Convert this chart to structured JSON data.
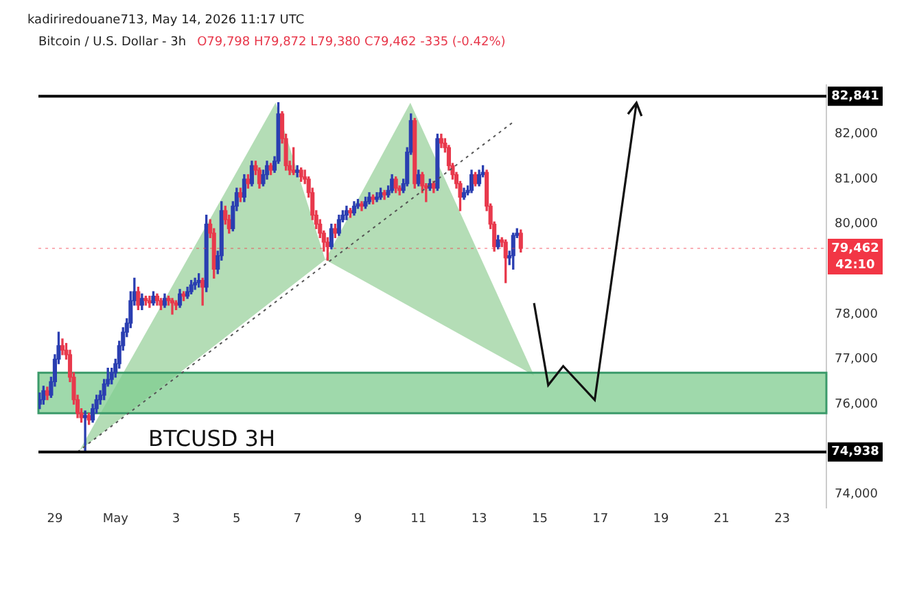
{
  "chart_data": {
    "type": "candlestick",
    "title": "Bitcoin / U.S. Dollar - 3h",
    "subtitle": "kadiriredouane713, May 14, 2026 11:17 UTC",
    "annotations": [
      "O79,798 H79,872 L79,380 C79,462 -335 (-0.42%)",
      "BTCUSD 3H",
      "42:10"
    ],
    "x": [
      "2026-04-28T12:00",
      "2026-04-28T15:00",
      "2026-04-28T18:00",
      "2026-04-28T21:00",
      "2026-04-29T00:00",
      "2026-04-29T03:00",
      "2026-04-29T06:00",
      "2026-04-29T09:00",
      "2026-04-29T12:00",
      "2026-04-29T15:00",
      "2026-04-29T18:00",
      "2026-04-29T21:00",
      "2026-04-30T00:00",
      "2026-04-30T03:00",
      "2026-04-30T06:00",
      "2026-04-30T09:00",
      "2026-04-30T12:00",
      "2026-04-30T15:00",
      "2026-04-30T18:00",
      "2026-04-30T21:00",
      "2026-05-01T00:00",
      "2026-05-01T03:00",
      "2026-05-01T06:00",
      "2026-05-01T09:00",
      "2026-05-01T12:00",
      "2026-05-01T15:00",
      "2026-05-01T18:00",
      "2026-05-01T21:00",
      "2026-05-02T00:00",
      "2026-05-02T03:00",
      "2026-05-02T06:00",
      "2026-05-02T09:00",
      "2026-05-02T12:00",
      "2026-05-02T15:00",
      "2026-05-02T18:00",
      "2026-05-02T21:00",
      "2026-05-03T00:00",
      "2026-05-03T03:00",
      "2026-05-03T06:00",
      "2026-05-03T09:00",
      "2026-05-03T12:00",
      "2026-05-03T15:00",
      "2026-05-03T18:00",
      "2026-05-03T21:00",
      "2026-05-04T00:00",
      "2026-05-04T03:00",
      "2026-05-04T06:00",
      "2026-05-04T09:00",
      "2026-05-04T12:00",
      "2026-05-04T15:00",
      "2026-05-04T18:00",
      "2026-05-04T21:00",
      "2026-05-05T00:00",
      "2026-05-05T03:00",
      "2026-05-05T06:00",
      "2026-05-05T09:00",
      "2026-05-05T12:00",
      "2026-05-05T15:00",
      "2026-05-05T18:00",
      "2026-05-05T21:00",
      "2026-05-06T00:00",
      "2026-05-06T03:00",
      "2026-05-06T06:00",
      "2026-05-06T09:00",
      "2026-05-06T12:00",
      "2026-05-06T15:00",
      "2026-05-06T18:00",
      "2026-05-06T21:00",
      "2026-05-07T00:00",
      "2026-05-07T03:00",
      "2026-05-07T06:00",
      "2026-05-07T09:00",
      "2026-05-07T12:00",
      "2026-05-07T15:00",
      "2026-05-07T18:00",
      "2026-05-07T21:00",
      "2026-05-08T00:00",
      "2026-05-08T03:00",
      "2026-05-08T06:00",
      "2026-05-08T09:00",
      "2026-05-08T12:00",
      "2026-05-08T15:00",
      "2026-05-08T18:00",
      "2026-05-08T21:00",
      "2026-05-09T00:00",
      "2026-05-09T03:00",
      "2026-05-09T06:00",
      "2026-05-09T09:00",
      "2026-05-09T12:00",
      "2026-05-09T15:00",
      "2026-05-09T18:00",
      "2026-05-09T21:00",
      "2026-05-10T00:00",
      "2026-05-10T03:00",
      "2026-05-10T06:00",
      "2026-05-10T09:00",
      "2026-05-10T12:00",
      "2026-05-10T15:00",
      "2026-05-10T18:00",
      "2026-05-10T21:00",
      "2026-05-11T00:00",
      "2026-05-11T03:00",
      "2026-05-11T06:00",
      "2026-05-11T09:00",
      "2026-05-11T12:00",
      "2026-05-11T15:00",
      "2026-05-11T18:00",
      "2026-05-11T21:00",
      "2026-05-12T00:00",
      "2026-05-12T03:00",
      "2026-05-12T06:00",
      "2026-05-12T09:00",
      "2026-05-12T12:00",
      "2026-05-12T15:00",
      "2026-05-12T18:00",
      "2026-05-12T21:00",
      "2026-05-13T00:00",
      "2026-05-13T03:00",
      "2026-05-13T06:00",
      "2026-05-13T09:00",
      "2026-05-13T12:00",
      "2026-05-13T15:00",
      "2026-05-13T18:00",
      "2026-05-13T21:00",
      "2026-05-14T00:00",
      "2026-05-14T03:00",
      "2026-05-14T06:00",
      "2026-05-14T09:00"
    ],
    "ohlc": [
      [
        76000,
        76250,
        75900,
        76100
      ],
      [
        76100,
        76400,
        76000,
        76300
      ],
      [
        76300,
        76380,
        76100,
        76200
      ],
      [
        76200,
        76600,
        76150,
        76500
      ],
      [
        76500,
        77100,
        76400,
        77000
      ],
      [
        77000,
        77600,
        76900,
        77300
      ],
      [
        77300,
        77450,
        77100,
        77200
      ],
      [
        77200,
        77350,
        77000,
        77100
      ],
      [
        77100,
        77200,
        76500,
        76600
      ],
      [
        76600,
        76700,
        76000,
        76100
      ],
      [
        76100,
        76200,
        75700,
        75800
      ],
      [
        75800,
        75900,
        75600,
        75700
      ],
      [
        75700,
        75850,
        74940,
        75750
      ],
      [
        75750,
        75800,
        75550,
        75650
      ],
      [
        75650,
        76000,
        75600,
        75900
      ],
      [
        75900,
        76200,
        75800,
        76100
      ],
      [
        76100,
        76300,
        76000,
        76200
      ],
      [
        76200,
        76550,
        76100,
        76450
      ],
      [
        76450,
        76800,
        76400,
        76550
      ],
      [
        76550,
        76800,
        76450,
        76700
      ],
      [
        76700,
        77000,
        76600,
        76900
      ],
      [
        76900,
        77400,
        76800,
        77300
      ],
      [
        77300,
        77700,
        77200,
        77600
      ],
      [
        77600,
        77900,
        77500,
        77800
      ],
      [
        77800,
        78500,
        77700,
        78300
      ],
      [
        78300,
        78800,
        78200,
        78500
      ],
      [
        78500,
        78600,
        78100,
        78200
      ],
      [
        78200,
        78450,
        78100,
        78350
      ],
      [
        78350,
        78400,
        78200,
        78300
      ],
      [
        78300,
        78400,
        78150,
        78250
      ],
      [
        78250,
        78500,
        78200,
        78400
      ],
      [
        78400,
        78450,
        78200,
        78300
      ],
      [
        78300,
        78350,
        78100,
        78200
      ],
      [
        78200,
        78450,
        78150,
        78350
      ],
      [
        78350,
        78400,
        78200,
        78300
      ],
      [
        78300,
        78350,
        78000,
        78250
      ],
      [
        78250,
        78300,
        78100,
        78200
      ],
      [
        78200,
        78550,
        78150,
        78450
      ],
      [
        78450,
        78500,
        78300,
        78400
      ],
      [
        78400,
        78600,
        78350,
        78500
      ],
      [
        78500,
        78750,
        78450,
        78650
      ],
      [
        78650,
        78800,
        78550,
        78700
      ],
      [
        78700,
        78900,
        78600,
        78750
      ],
      [
        78750,
        78800,
        78200,
        78600
      ],
      [
        78600,
        80200,
        78500,
        80000
      ],
      [
        80000,
        80100,
        79700,
        79800
      ],
      [
        79800,
        79900,
        78800,
        79000
      ],
      [
        79000,
        79400,
        78900,
        79300
      ],
      [
        79300,
        80500,
        79200,
        80300
      ],
      [
        80300,
        80400,
        80000,
        80100
      ],
      [
        80100,
        80200,
        79800,
        79900
      ],
      [
        79900,
        80500,
        79850,
        80400
      ],
      [
        80400,
        80800,
        80300,
        80700
      ],
      [
        80700,
        80800,
        80500,
        80600
      ],
      [
        80600,
        81100,
        80500,
        81000
      ],
      [
        81000,
        81100,
        80800,
        80900
      ],
      [
        80900,
        81400,
        80850,
        81300
      ],
      [
        81300,
        81400,
        81100,
        81200
      ],
      [
        81200,
        81250,
        80800,
        80900
      ],
      [
        80900,
        81200,
        80850,
        81100
      ],
      [
        81100,
        81400,
        81000,
        81300
      ],
      [
        81300,
        81350,
        81100,
        81200
      ],
      [
        81200,
        81500,
        81150,
        81400
      ],
      [
        81400,
        82700,
        81350,
        82450
      ],
      [
        82450,
        82500,
        81800,
        81900
      ],
      [
        81900,
        82000,
        81200,
        81300
      ],
      [
        81300,
        81400,
        81100,
        81200
      ],
      [
        81200,
        81700,
        81100,
        81150
      ],
      [
        81150,
        81300,
        81050,
        81200
      ],
      [
        81200,
        81250,
        80950,
        81050
      ],
      [
        81050,
        81200,
        80900,
        81000
      ],
      [
        81000,
        81050,
        80600,
        80700
      ],
      [
        80700,
        80800,
        80100,
        80200
      ],
      [
        80200,
        80300,
        79900,
        80000
      ],
      [
        80000,
        80100,
        79700,
        79800
      ],
      [
        79800,
        79850,
        79400,
        79600
      ],
      [
        79600,
        79700,
        79200,
        79500
      ],
      [
        79500,
        80000,
        79450,
        79900
      ],
      [
        79900,
        80000,
        79700,
        79800
      ],
      [
        79800,
        80200,
        79750,
        80100
      ],
      [
        80100,
        80300,
        80050,
        80200
      ],
      [
        80200,
        80400,
        80100,
        80300
      ],
      [
        80300,
        80350,
        80150,
        80250
      ],
      [
        80250,
        80500,
        80200,
        80400
      ],
      [
        80400,
        80550,
        80350,
        80450
      ],
      [
        80450,
        80500,
        80300,
        80400
      ],
      [
        80400,
        80600,
        80350,
        80500
      ],
      [
        80500,
        80700,
        80450,
        80600
      ],
      [
        80600,
        80650,
        80450,
        80550
      ],
      [
        80550,
        80700,
        80500,
        80600
      ],
      [
        80600,
        80800,
        80550,
        80700
      ],
      [
        80700,
        80750,
        80550,
        80650
      ],
      [
        80650,
        80850,
        80600,
        80750
      ],
      [
        80750,
        81100,
        80700,
        81000
      ],
      [
        81000,
        81050,
        80700,
        80800
      ],
      [
        80800,
        80850,
        80650,
        80750
      ],
      [
        80750,
        81000,
        80700,
        80900
      ],
      [
        80900,
        81700,
        80850,
        81600
      ],
      [
        81600,
        82450,
        81550,
        82300
      ],
      [
        82300,
        82350,
        80800,
        80900
      ],
      [
        80900,
        81200,
        80850,
        81100
      ],
      [
        81100,
        81150,
        80700,
        80850
      ],
      [
        80850,
        80900,
        80500,
        80800
      ],
      [
        80800,
        81000,
        80750,
        80900
      ],
      [
        80900,
        80950,
        80700,
        80800
      ],
      [
        80800,
        82000,
        80750,
        81900
      ],
      [
        81900,
        82000,
        81700,
        81800
      ],
      [
        81800,
        81900,
        81600,
        81700
      ],
      [
        81700,
        81750,
        81200,
        81300
      ],
      [
        81300,
        81350,
        81000,
        81100
      ],
      [
        81100,
        81150,
        80800,
        80900
      ],
      [
        80900,
        80950,
        80300,
        80600
      ],
      [
        80600,
        80800,
        80550,
        80700
      ],
      [
        80700,
        80850,
        80650,
        80750
      ],
      [
        80750,
        81200,
        80700,
        81100
      ],
      [
        81100,
        81150,
        80850,
        80900
      ],
      [
        80900,
        81200,
        80850,
        81100
      ],
      [
        81100,
        81300,
        81050,
        81150
      ],
      [
        81150,
        81200,
        80300,
        80400
      ],
      [
        80400,
        80450,
        79900,
        80000
      ],
      [
        80000,
        80050,
        79400,
        79500
      ],
      [
        79500,
        79750,
        79450,
        79650
      ],
      [
        79650,
        79700,
        79500,
        79600
      ],
      [
        79600,
        79650,
        78700,
        79250
      ],
      [
        79250,
        79400,
        79100,
        79300
      ],
      [
        79300,
        79800,
        79000,
        79750
      ],
      [
        79750,
        79900,
        79700,
        79798
      ],
      [
        79798,
        79872,
        79380,
        79462
      ]
    ],
    "colors": [
      "#2a3eb1",
      "#2a3eb1",
      "#e8394c",
      "#2a3eb1",
      "#2a3eb1",
      "#2a3eb1",
      "#e8394c",
      "#e8394c",
      "#e8394c",
      "#e8394c",
      "#e8394c",
      "#e8394c",
      "#2a3eb1",
      "#e8394c",
      "#2a3eb1",
      "#2a3eb1",
      "#2a3eb1",
      "#2a3eb1",
      "#2a3eb1",
      "#2a3eb1",
      "#2a3eb1",
      "#2a3eb1",
      "#2a3eb1",
      "#2a3eb1",
      "#2a3eb1",
      "#2a3eb1",
      "#e8394c",
      "#2a3eb1",
      "#e8394c",
      "#e8394c",
      "#2a3eb1",
      "#e8394c",
      "#e8394c",
      "#2a3eb1",
      "#e8394c",
      "#e8394c",
      "#e8394c",
      "#2a3eb1",
      "#e8394c",
      "#2a3eb1",
      "#2a3eb1",
      "#2a3eb1",
      "#2a3eb1",
      "#e8394c",
      "#2a3eb1",
      "#e8394c",
      "#e8394c",
      "#2a3eb1",
      "#2a3eb1",
      "#e8394c",
      "#e8394c",
      "#2a3eb1",
      "#2a3eb1",
      "#e8394c",
      "#2a3eb1",
      "#e8394c",
      "#2a3eb1",
      "#e8394c",
      "#e8394c",
      "#2a3eb1",
      "#2a3eb1",
      "#e8394c",
      "#2a3eb1",
      "#2a3eb1",
      "#e8394c",
      "#e8394c",
      "#e8394c",
      "#e8394c",
      "#2a3eb1",
      "#e8394c",
      "#e8394c",
      "#e8394c",
      "#e8394c",
      "#e8394c",
      "#e8394c",
      "#e8394c",
      "#e8394c",
      "#2a3eb1",
      "#e8394c",
      "#2a3eb1",
      "#2a3eb1",
      "#2a3eb1",
      "#e8394c",
      "#2a3eb1",
      "#2a3eb1",
      "#e8394c",
      "#2a3eb1",
      "#2a3eb1",
      "#e8394c",
      "#2a3eb1",
      "#2a3eb1",
      "#e8394c",
      "#2a3eb1",
      "#2a3eb1",
      "#e8394c",
      "#e8394c",
      "#2a3eb1",
      "#2a3eb1",
      "#2a3eb1",
      "#e8394c",
      "#2a3eb1",
      "#e8394c",
      "#e8394c",
      "#2a3eb1",
      "#e8394c",
      "#2a3eb1",
      "#e8394c",
      "#e8394c",
      "#e8394c",
      "#e8394c",
      "#e8394c",
      "#e8394c",
      "#2a3eb1",
      "#2a3eb1",
      "#2a3eb1",
      "#e8394c",
      "#2a3eb1",
      "#2a3eb1",
      "#e8394c",
      "#e8394c",
      "#e8394c",
      "#2a3eb1",
      "#e8394c",
      "#e8394c",
      "#2a3eb1",
      "#2a3eb1",
      "#2a3eb1",
      "#e8394c"
    ],
    "series": [
      {
        "type": "line",
        "x": [
          "2026-04-29T18:00",
          "2026-05-14T03:00"
        ],
        "values": [
          74940,
          82270
        ],
        "color": "#555555",
        "line_style": "dotted",
        "marker": "none"
      }
    ],
    "xlim": [
      "2026-04-28T11:00",
      "2026-05-24T11:00"
    ],
    "xticks": [
      {
        "value": "2026-04-29",
        "label": "29"
      },
      {
        "value": "2026-05-01",
        "label": "May"
      },
      {
        "value": "2026-05-03",
        "label": "3"
      },
      {
        "value": "2026-05-05",
        "label": "5"
      },
      {
        "value": "2026-05-07",
        "label": "7"
      },
      {
        "value": "2026-05-09",
        "label": "9"
      },
      {
        "value": "2026-05-11",
        "label": "11"
      },
      {
        "value": "2026-05-13",
        "label": "13"
      },
      {
        "value": "2026-05-15",
        "label": "15"
      },
      {
        "value": "2026-05-17",
        "label": "17"
      },
      {
        "value": "2026-05-19",
        "label": "19"
      },
      {
        "value": "2026-05-21",
        "label": "21"
      },
      {
        "value": "2026-05-23",
        "label": "23"
      }
    ],
    "ylim": [
      73700,
      83090
    ],
    "yticks": [
      {
        "value": 74000,
        "label": "74,000"
      },
      {
        "value": 76000,
        "label": "76,000"
      },
      {
        "value": 77000,
        "label": "77,000"
      },
      {
        "value": 78000,
        "label": "78,000"
      },
      {
        "value": 80000,
        "label": "80,000"
      },
      {
        "value": 81000,
        "label": "81,000"
      },
      {
        "value": 82000,
        "label": "82,000"
      }
    ],
    "ref_lines": [
      {
        "axis": "y",
        "value": 82841,
        "label": "82,841",
        "color": "#000000"
      },
      {
        "axis": "y",
        "value": 74938,
        "label": "74,938",
        "color": "#000000"
      },
      {
        "axis": "y",
        "value": 79462,
        "label": "79,462",
        "color": "#f23645",
        "line_style": "dotted"
      }
    ],
    "bands": [
      {
        "axis": "y",
        "from": 75800,
        "to": 76700,
        "color": "#7fcc8f"
      }
    ],
    "grid": false,
    "legend": false
  }
}
